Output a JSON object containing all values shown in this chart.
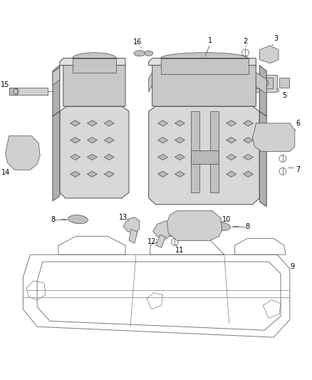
{
  "background_color": "#ffffff",
  "line_color": "#7a7a7a",
  "dark_line": "#4a4a4a",
  "text_color": "#000000",
  "fig_width": 4.38,
  "fig_height": 5.33,
  "dpi": 100,
  "seat_fill": "#d8d8d8",
  "seat_fill2": "#c8c8c8",
  "shadow_fill": "#b0b0b0"
}
